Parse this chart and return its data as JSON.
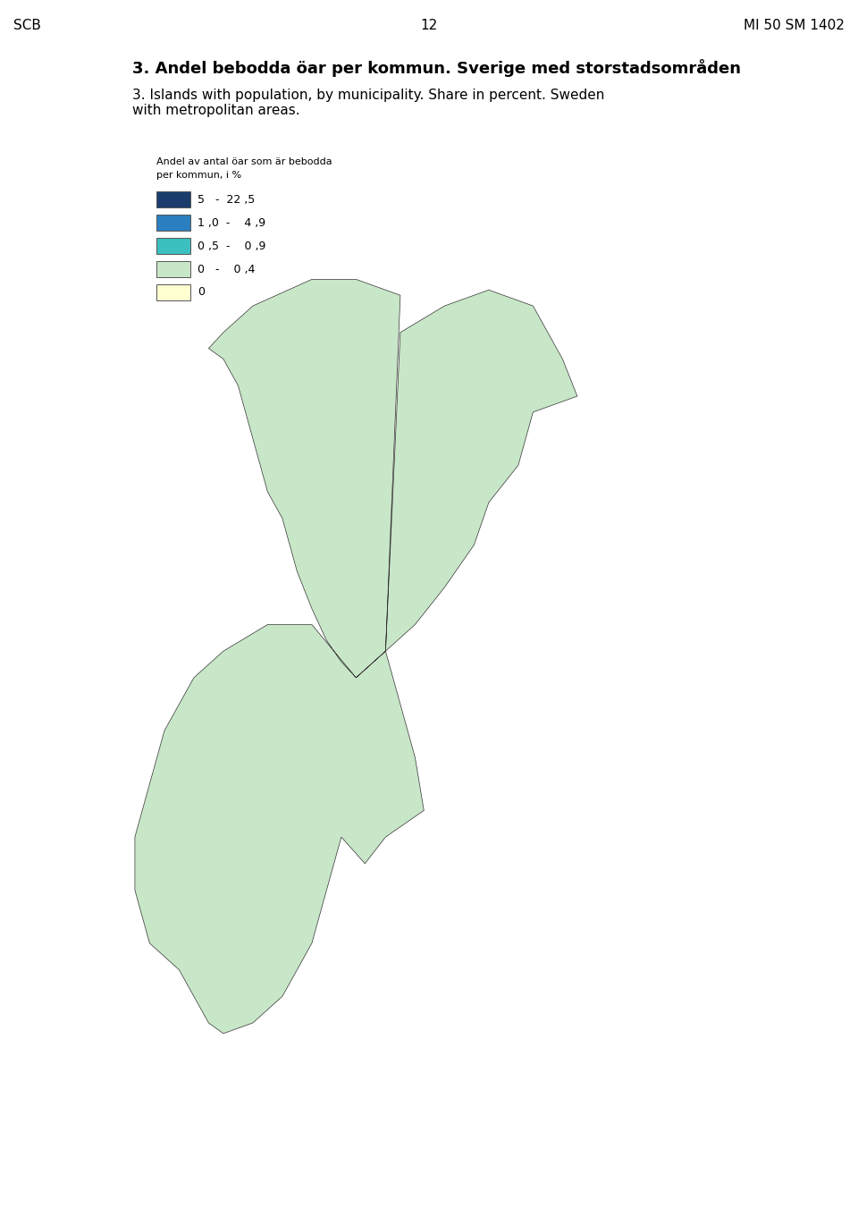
{
  "title_swedish": "3. Andel bebodda öar per kommun. Sverige med storstadsområden",
  "title_english": "3. Islands with population, by municipality. Share in percent. Sweden\nwith metropolitan areas.",
  "header_left": "SCB",
  "header_center": "12",
  "header_right": "MI 50 SM 1402",
  "legend_title_line1": "Andel av antal öar som är bebodda",
  "legend_title_line2": "per kommun, i %",
  "legend_entries": [
    {
      "label": "5   -  22 ,5",
      "color": "#1a3d6e"
    },
    {
      "label": "1 ,0  -    4 ,9",
      "color": "#2b7fc1"
    },
    {
      "label": "0 ,5  -    0 ,9",
      "color": "#3cbfbf"
    },
    {
      "label": "0   -    0 ,4",
      "color": "#c8e6c8"
    },
    {
      "label": "0",
      "color": "#ffffd0"
    }
  ],
  "background_color": "#ffffff",
  "map_edge_color": "#333333",
  "map_edge_width": 0.3,
  "colors": {
    "darkblue": "#1a3d6e",
    "medblue": "#2b7fc1",
    "teal": "#3cbfbf",
    "lightgreen": "#c8e6c8",
    "lightyellow": "#ffffd0"
  }
}
